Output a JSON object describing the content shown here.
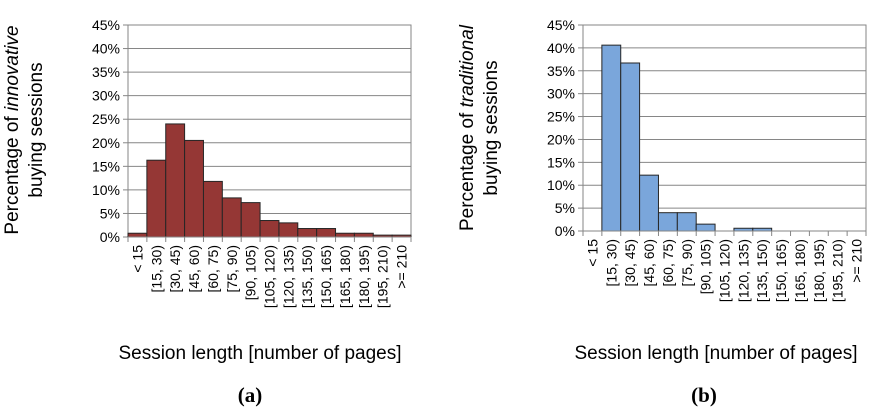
{
  "chart_data": [
    {
      "type": "bar",
      "panel_label": "(a)",
      "ylabel_prefix": "Percentage of ",
      "ylabel_emph": "innovative",
      "ylabel_line2": "buying sessions",
      "xlabel": "Session length [number of pages]",
      "ylim": [
        0,
        45
      ],
      "yticks": [
        "0%",
        "5%",
        "10%",
        "15%",
        "20%",
        "25%",
        "30%",
        "35%",
        "40%",
        "45%"
      ],
      "grid": true,
      "bar_color": "#953735",
      "categories": [
        "< 15",
        "[15, 30)",
        "[30, 45)",
        "[45, 60)",
        "[60, 75)",
        "[75, 90)",
        "[90, 105)",
        "[105, 120)",
        "[120, 135)",
        "[135, 150)",
        "[150, 165)",
        "[165, 180)",
        "[180, 195)",
        "[195, 210)",
        ">= 210"
      ],
      "values": [
        0.8,
        16.3,
        24.0,
        20.5,
        11.8,
        8.3,
        7.3,
        3.5,
        3.0,
        1.8,
        1.8,
        0.8,
        0.8,
        0.4,
        0.4
      ]
    },
    {
      "type": "bar",
      "panel_label": "(b)",
      "ylabel_prefix": "Percentage of ",
      "ylabel_emph": "traditional",
      "ylabel_line2": "buying sessions",
      "xlabel": "Session length [number of pages]",
      "ylim": [
        0,
        45
      ],
      "yticks": [
        "0%",
        "5%",
        "10%",
        "15%",
        "20%",
        "25%",
        "30%",
        "35%",
        "40%",
        "45%"
      ],
      "grid": true,
      "bar_color": "#7aa6db",
      "categories": [
        "< 15",
        "[15, 30)",
        "[30, 45)",
        "[45, 60)",
        "[60, 75)",
        "[75, 90)",
        "[90, 105)",
        "[105, 120)",
        "[120, 135)",
        "[135, 150)",
        "[150, 165)",
        "[165, 180)",
        "[180, 195)",
        "[195, 210)",
        ">= 210"
      ],
      "values": [
        0,
        40.6,
        36.7,
        12.2,
        4.0,
        4.0,
        1.5,
        0,
        0.6,
        0.6,
        0,
        0,
        0,
        0,
        0
      ]
    }
  ]
}
